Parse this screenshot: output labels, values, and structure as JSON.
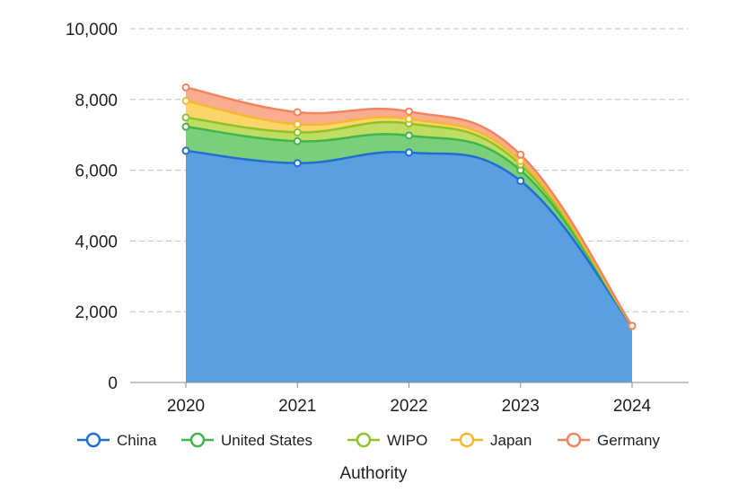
{
  "chart_data": {
    "type": "area",
    "stacked": true,
    "categories": [
      "2020",
      "2021",
      "2022",
      "2023",
      "2024"
    ],
    "series": [
      {
        "name": "China",
        "values": [
          6550,
          6200,
          6500,
          5700,
          1600
        ],
        "color": "#1f6fd1",
        "fill": "#5b9fe0"
      },
      {
        "name": "United States",
        "values": [
          680,
          620,
          480,
          300,
          0
        ],
        "color": "#3fb54a",
        "fill": "#7ccf7a"
      },
      {
        "name": "WIPO",
        "values": [
          260,
          250,
          340,
          160,
          0
        ],
        "color": "#8fc22a",
        "fill": "#c0dd63"
      },
      {
        "name": "Japan",
        "values": [
          470,
          230,
          130,
          100,
          0
        ],
        "color": "#f5b92e",
        "fill": "#fbd569"
      },
      {
        "name": "Germany",
        "values": [
          380,
          340,
          210,
          180,
          0
        ],
        "color": "#f4845f",
        "fill": "#f8ad90"
      }
    ],
    "y_ticks": [
      "0",
      "2,000",
      "4,000",
      "6,000",
      "8,000",
      "10,000"
    ],
    "ylim": [
      0,
      10000
    ],
    "grid": true,
    "legend": {
      "placement": "bottom",
      "title": "Authority"
    }
  }
}
